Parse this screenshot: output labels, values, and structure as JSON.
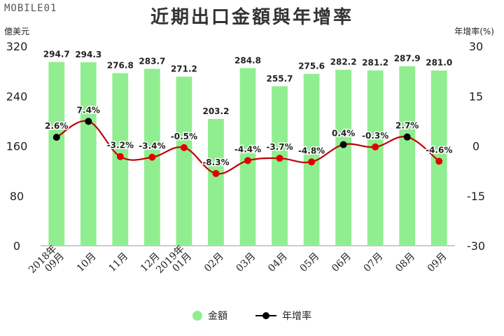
{
  "watermark": "MOBILE01",
  "colors": {
    "bar": "#90ee90",
    "line": "#c00000",
    "point_red": "#e00000",
    "point_black": "#000000",
    "axis": "#999999"
  },
  "chart_data": {
    "type": "bar",
    "title": "近期出口金額與年增率",
    "left_axis_label": "億美元",
    "right_axis_label": "年增率(%)",
    "categories": [
      "2018年\n09月",
      "10月",
      "11月",
      "12月",
      "2019年\n01月",
      "02月",
      "03月",
      "04月",
      "05月",
      "06月",
      "07月",
      "08月",
      "09月"
    ],
    "y_left": {
      "ylim": [
        0,
        320
      ],
      "ticks": [
        0,
        80,
        160,
        240,
        320
      ]
    },
    "y_right": {
      "ylim": [
        -30,
        30
      ],
      "ticks": [
        -30,
        -15,
        0,
        15,
        30
      ]
    },
    "series": [
      {
        "name": "金額",
        "type": "bar",
        "axis": "left",
        "values": [
          294.7,
          294.3,
          276.8,
          283.7,
          271.2,
          203.2,
          284.8,
          255.7,
          275.6,
          282.2,
          281.2,
          287.9,
          281.0
        ],
        "labels": [
          "294.7",
          "294.3",
          "276.8",
          "283.7",
          "271.2",
          "203.2",
          "284.8",
          "255.7",
          "275.6",
          "282.2",
          "281.2",
          "287.9",
          "281.0"
        ]
      },
      {
        "name": "年增率",
        "type": "line",
        "axis": "right",
        "values": [
          2.6,
          7.4,
          -3.2,
          -3.4,
          -0.5,
          -8.3,
          -4.4,
          -3.7,
          -4.8,
          0.4,
          -0.3,
          2.7,
          -4.6
        ],
        "labels": [
          "2.6%",
          "7.4%",
          "-3.2%",
          "-3.4%",
          "-0.5%",
          "-8.3%",
          "-4.4%",
          "-3.7%",
          "-4.8%",
          "0.4%",
          "-0.3%",
          "2.7%",
          "-4.6%"
        ]
      }
    ],
    "legend": {
      "position": "bottom"
    }
  }
}
